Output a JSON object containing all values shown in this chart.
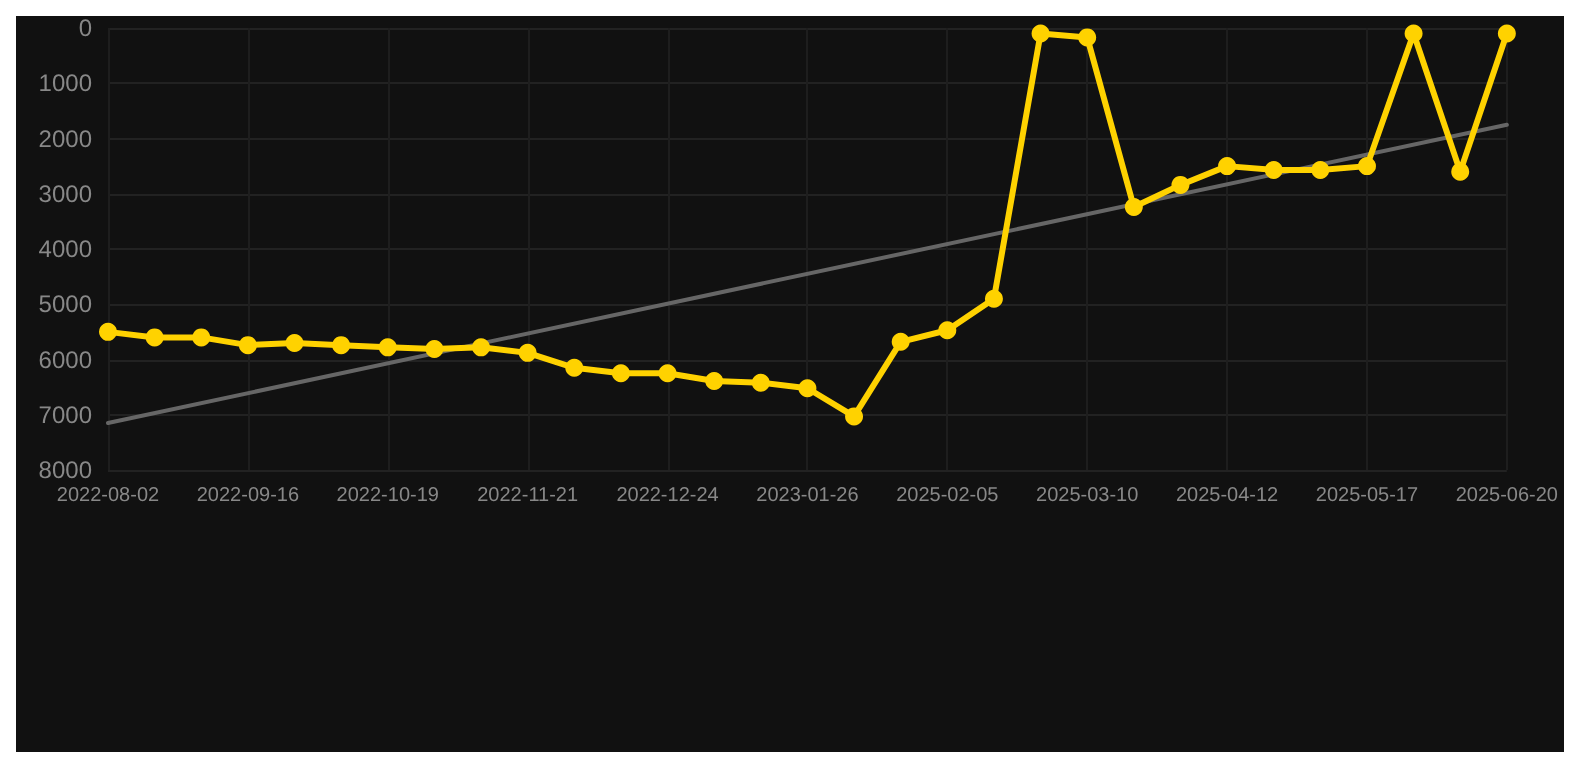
{
  "chart_data": {
    "type": "line",
    "categories": [
      "2022-08-02",
      null,
      null,
      "2022-09-16",
      null,
      null,
      "2022-10-19",
      null,
      null,
      "2022-11-21",
      null,
      null,
      "2022-12-24",
      null,
      null,
      "2023-01-26",
      null,
      null,
      "2025-02-05",
      null,
      null,
      "2025-03-10",
      null,
      null,
      "2025-04-12",
      null,
      null,
      "2025-05-17",
      null,
      null,
      "2025-06-20"
    ],
    "series": [
      {
        "color": "#ffd200",
        "marker": "circle",
        "values": [
          5500,
          5600,
          5600,
          5740,
          5700,
          5740,
          5780,
          5810,
          5780,
          5880,
          6150,
          6250,
          6250,
          6390,
          6420,
          6520,
          7030,
          5680,
          5470,
          4900,
          100,
          170,
          3240,
          2840,
          2500,
          2570,
          2570,
          2500,
          100,
          2600,
          100
        ]
      },
      {
        "color": "#666666",
        "marker": "none",
        "values": [
          7150,
          null,
          null,
          null,
          null,
          null,
          null,
          null,
          null,
          null,
          null,
          null,
          null,
          null,
          null,
          null,
          null,
          null,
          null,
          null,
          null,
          null,
          null,
          null,
          null,
          null,
          null,
          null,
          null,
          null,
          1750
        ]
      }
    ],
    "ylim": [
      8000,
      0
    ],
    "yticks": [
      0,
      1000,
      2000,
      3000,
      4000,
      5000,
      6000,
      7000,
      8000
    ],
    "grid": true,
    "line_style": "solid"
  }
}
